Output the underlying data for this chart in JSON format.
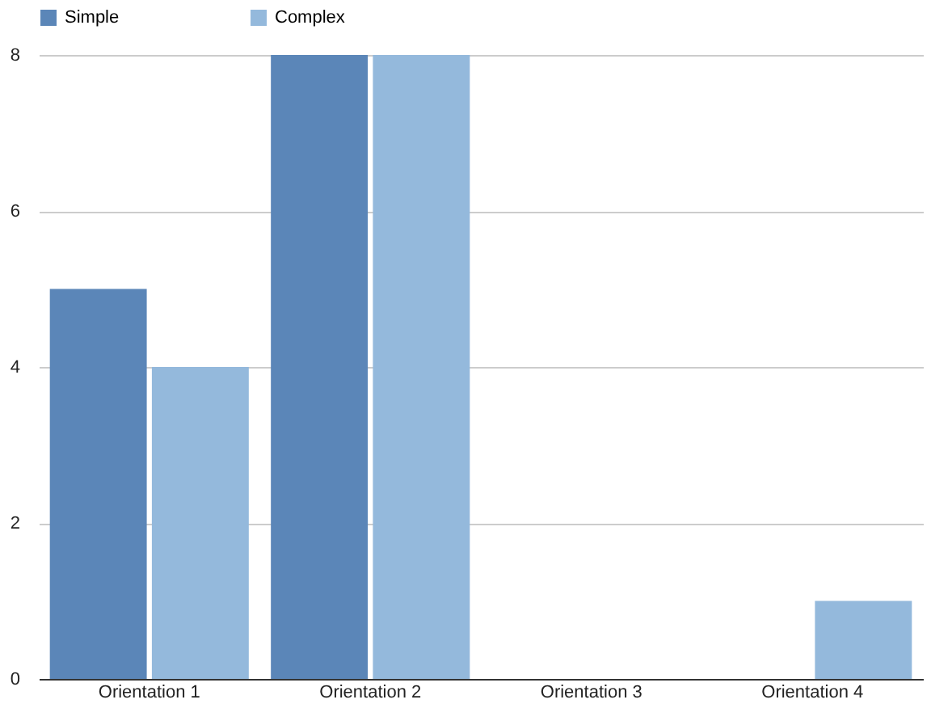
{
  "chart_data": {
    "type": "bar",
    "categories": [
      "Orientation 1",
      "Orientation 2",
      "Orientation 3",
      "Orientation 4"
    ],
    "series": [
      {
        "name": "Simple",
        "color": "#5b86b8",
        "values": [
          5,
          8,
          0,
          0
        ]
      },
      {
        "name": "Complex",
        "color": "#94b9dc",
        "values": [
          4,
          8,
          0,
          1
        ]
      }
    ],
    "ylim": [
      0,
      8
    ],
    "yticks": [
      0,
      2,
      4,
      6,
      8
    ],
    "grid": "y",
    "legend": "top"
  }
}
